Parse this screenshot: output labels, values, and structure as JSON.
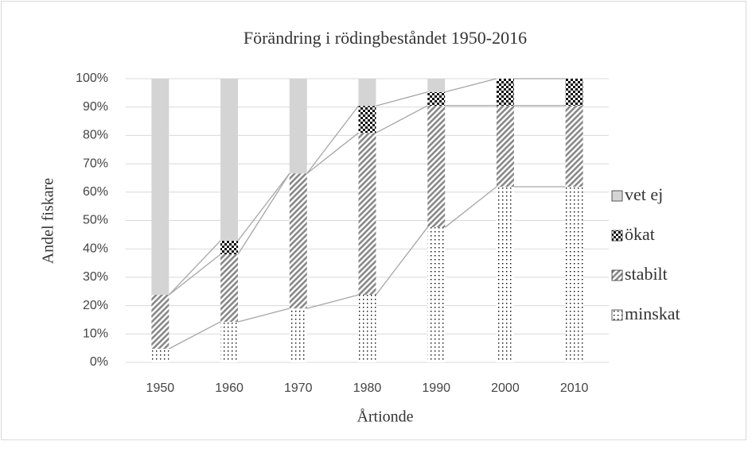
{
  "chart_data": {
    "type": "stacked_bar",
    "title": "Förändring i rödingbeståndet 1950-2016",
    "x_label": "Årtionde",
    "y_label": "Andel fiskare",
    "categories": [
      "1950",
      "1960",
      "1970",
      "1980",
      "1990",
      "2000",
      "2010"
    ],
    "series": [
      {
        "name": "minskat",
        "color": "#ffffff",
        "pattern": "dots",
        "values": [
          4.8,
          14.3,
          19,
          23.8,
          47.6,
          61.9,
          61.9
        ]
      },
      {
        "name": "stabilt",
        "color": "#9a9a9a",
        "pattern": "diagonal",
        "values": [
          19,
          23.8,
          47.6,
          57.1,
          42.9,
          28.6,
          28.6
        ]
      },
      {
        "name": "ökat",
        "color": "#111111",
        "pattern": "checker",
        "values": [
          0,
          4.8,
          0,
          9.5,
          4.8,
          9.5,
          9.5
        ]
      },
      {
        "name": "vet ej",
        "color": "#d4d4d4",
        "pattern": "solid",
        "values": [
          76.2,
          57.1,
          33.4,
          9.6,
          4.7,
          0,
          0
        ]
      }
    ],
    "ylim": [
      0,
      100
    ],
    "yticks": [
      {
        "value": 0,
        "label": "0%"
      },
      {
        "value": 10,
        "label": "10%"
      },
      {
        "value": 20,
        "label": "20%"
      },
      {
        "value": 30,
        "label": "30%"
      },
      {
        "value": 40,
        "label": "40%"
      },
      {
        "value": 50,
        "label": "50%"
      },
      {
        "value": 60,
        "label": "60%"
      },
      {
        "value": 70,
        "label": "70%"
      },
      {
        "value": 80,
        "label": "80%"
      },
      {
        "value": 90,
        "label": "90%"
      },
      {
        "value": 100,
        "label": "100%"
      }
    ],
    "grid": true,
    "legend": "right"
  }
}
